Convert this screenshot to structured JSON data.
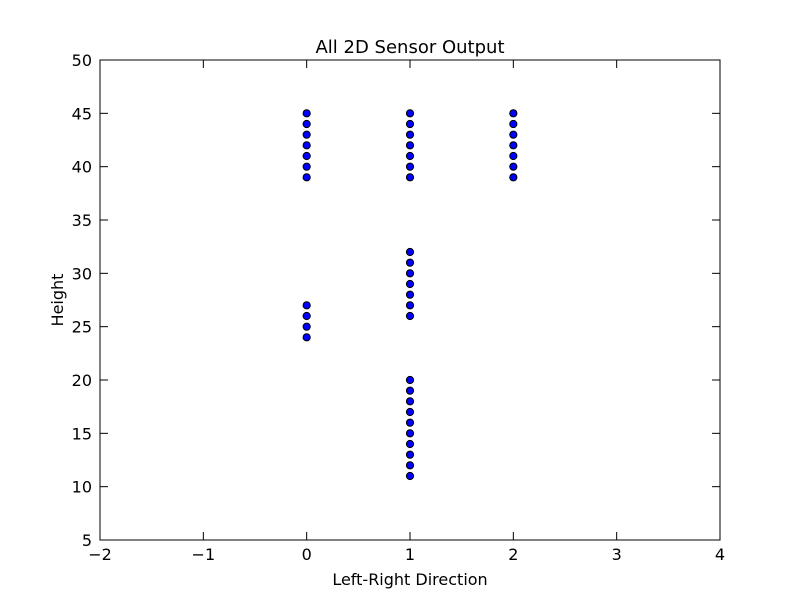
{
  "chart_data": {
    "type": "scatter",
    "title": "All 2D Sensor Output",
    "xlabel": "Left-Right Direction",
    "ylabel": "Height",
    "xlim": [
      -2,
      4
    ],
    "ylim": [
      5,
      50
    ],
    "xticks": [
      "−2",
      "−1",
      "0",
      "1",
      "2",
      "3",
      "4"
    ],
    "yticks": [
      "5",
      "10",
      "15",
      "20",
      "25",
      "30",
      "35",
      "40",
      "45",
      "50"
    ],
    "grid": false,
    "legend": "none",
    "marker_color": "#0000ff",
    "points": [
      {
        "x": 0,
        "y": 45
      },
      {
        "x": 0,
        "y": 44
      },
      {
        "x": 0,
        "y": 43
      },
      {
        "x": 0,
        "y": 42
      },
      {
        "x": 0,
        "y": 41
      },
      {
        "x": 0,
        "y": 40
      },
      {
        "x": 0,
        "y": 39
      },
      {
        "x": 0,
        "y": 27
      },
      {
        "x": 0,
        "y": 26
      },
      {
        "x": 0,
        "y": 25
      },
      {
        "x": 0,
        "y": 24
      },
      {
        "x": 1,
        "y": 45
      },
      {
        "x": 1,
        "y": 44
      },
      {
        "x": 1,
        "y": 43
      },
      {
        "x": 1,
        "y": 42
      },
      {
        "x": 1,
        "y": 41
      },
      {
        "x": 1,
        "y": 40
      },
      {
        "x": 1,
        "y": 39
      },
      {
        "x": 1,
        "y": 32
      },
      {
        "x": 1,
        "y": 31
      },
      {
        "x": 1,
        "y": 30
      },
      {
        "x": 1,
        "y": 29
      },
      {
        "x": 1,
        "y": 28
      },
      {
        "x": 1,
        "y": 27
      },
      {
        "x": 1,
        "y": 26
      },
      {
        "x": 1,
        "y": 20
      },
      {
        "x": 1,
        "y": 19
      },
      {
        "x": 1,
        "y": 18
      },
      {
        "x": 1,
        "y": 17
      },
      {
        "x": 1,
        "y": 16
      },
      {
        "x": 1,
        "y": 15
      },
      {
        "x": 1,
        "y": 14
      },
      {
        "x": 1,
        "y": 13
      },
      {
        "x": 1,
        "y": 12
      },
      {
        "x": 1,
        "y": 11
      },
      {
        "x": 2,
        "y": 45
      },
      {
        "x": 2,
        "y": 44
      },
      {
        "x": 2,
        "y": 43
      },
      {
        "x": 2,
        "y": 42
      },
      {
        "x": 2,
        "y": 41
      },
      {
        "x": 2,
        "y": 40
      },
      {
        "x": 2,
        "y": 39
      }
    ]
  }
}
